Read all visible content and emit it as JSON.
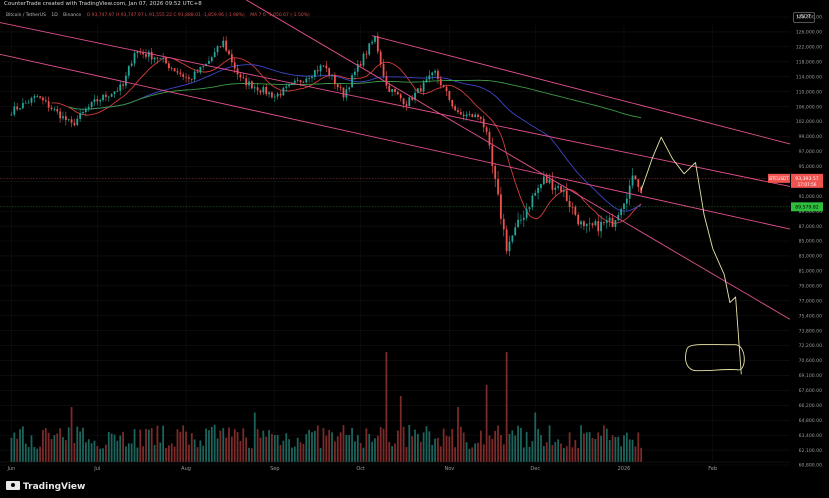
{
  "header": {
    "credit": "CounterTrade created with TradingView.com, Jan 07, 2026 09:52 UTC+8",
    "symbol": "Bitcoin / TetherUS",
    "interval": "1D",
    "exchange": "Binance",
    "ohlc": "O 93,747.97  H 93,747.97  L 91,555.22  C 91,888.01  -1,859.96 (-1.98%)",
    "indicator": "MA 7 0  -1,050.67 (-1.50%)",
    "currency": "USDT"
  },
  "branding": {
    "logo_text": "TradingView"
  },
  "chart_data": {
    "type": "candlestick",
    "symbol": "BTCUSDT",
    "x_ticks": [
      "Jun",
      "Jul",
      "Aug",
      "Sep",
      "Oct",
      "Nov",
      "Dec",
      "2026",
      "Feb"
    ],
    "y_ticks": [
      130000,
      126000,
      122000,
      118000,
      114000,
      110000,
      106000,
      102000,
      99000,
      97000,
      95000,
      93000,
      91000,
      89000,
      87000,
      85000,
      83000,
      81000,
      79000,
      77000,
      75400,
      73800,
      72200,
      70600,
      69100,
      67600,
      66200,
      64800,
      63400,
      62100,
      60800
    ],
    "ylim": [
      60800,
      134000
    ],
    "price_labels": [
      {
        "label": "BTCUSDT",
        "value": "93,393.57",
        "sub": "17:07:56",
        "color": "#ef5350"
      },
      {
        "label": "",
        "value": "89,579.82",
        "color": "#2ebd3c"
      }
    ],
    "moving_averages": [
      {
        "color": "#d23c3c",
        "label": "MA short"
      },
      {
        "color": "#3f46c8",
        "label": "MA mid"
      },
      {
        "color": "#3e9a45",
        "label": "MA long"
      }
    ],
    "trendline_color": "#e0508f",
    "drawing_color": "#e8e3a8",
    "up_color": "#26a69a",
    "down_color": "#ef5350",
    "anchors": [
      [
        "2025-06-01",
        104800
      ],
      [
        "2025-06-10",
        108700
      ],
      [
        "2025-06-22",
        101200
      ],
      [
        "2025-06-30",
        107200
      ],
      [
        "2025-07-10",
        111500
      ],
      [
        "2025-07-14",
        120800
      ],
      [
        "2025-07-22",
        119200
      ],
      [
        "2025-08-02",
        113200
      ],
      [
        "2025-08-08",
        117200
      ],
      [
        "2025-08-14",
        123200
      ],
      [
        "2025-08-20",
        113200
      ],
      [
        "2025-09-01",
        108800
      ],
      [
        "2025-09-10",
        113000
      ],
      [
        "2025-09-18",
        117000
      ],
      [
        "2025-09-25",
        109200
      ],
      [
        "2025-10-01",
        118000
      ],
      [
        "2025-10-06",
        124500
      ],
      [
        "2025-10-10",
        111500
      ],
      [
        "2025-10-17",
        106900
      ],
      [
        "2025-10-27",
        115000
      ],
      [
        "2025-11-04",
        103800
      ],
      [
        "2025-11-12",
        103300
      ],
      [
        "2025-11-21",
        84200
      ],
      [
        "2025-11-30",
        90800
      ],
      [
        "2025-12-04",
        93200
      ],
      [
        "2025-12-10",
        92100
      ],
      [
        "2025-12-18",
        86500
      ],
      [
        "2025-12-28",
        87600
      ],
      [
        "2026-01-05",
        93800
      ],
      [
        "2026-01-07",
        91900
      ]
    ],
    "volume_spikes": [
      [
        "2025-10-10",
        1.0
      ],
      [
        "2025-11-21",
        1.0
      ],
      [
        "2025-11-14",
        0.7
      ],
      [
        "2025-10-15",
        0.6
      ],
      [
        "2025-08-25",
        0.45
      ],
      [
        "2025-11-04",
        0.5
      ],
      [
        "2025-12-01",
        0.45
      ],
      [
        "2025-06-22",
        0.5
      ]
    ]
  }
}
